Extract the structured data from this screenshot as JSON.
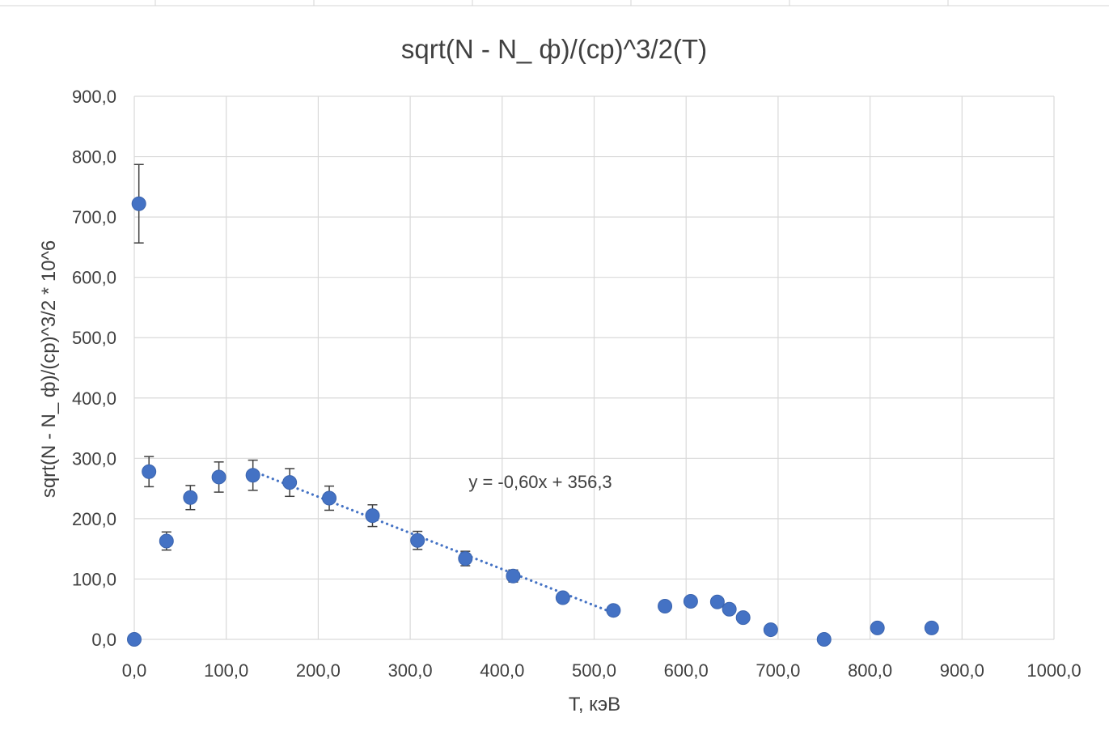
{
  "chart_data": {
    "type": "scatter",
    "title": "sqrt(N - N_ ф)/(cp)^3/2(T)",
    "xlabel": "T, кэВ",
    "ylabel": "sqrt(N - N_ ф)/(cp)^3/2 * 10^6",
    "xlim": [
      0,
      1000
    ],
    "ylim": [
      0,
      900
    ],
    "x_ticks": [
      0,
      100,
      200,
      300,
      400,
      500,
      600,
      700,
      800,
      900,
      1000
    ],
    "y_ticks": [
      0,
      100,
      200,
      300,
      400,
      500,
      600,
      700,
      800,
      900
    ],
    "x_tick_labels": [
      "0,0",
      "100,0",
      "200,0",
      "300,0",
      "400,0",
      "500,0",
      "600,0",
      "700,0",
      "800,0",
      "900,0",
      "1000,0"
    ],
    "y_tick_labels": [
      "0,0",
      "100,0",
      "200,0",
      "300,0",
      "400,0",
      "500,0",
      "600,0",
      "700,0",
      "800,0",
      "900,0"
    ],
    "grid": true,
    "legend": "none",
    "marker_color": "#4472C4",
    "errorbar_color": "#404040",
    "series": [
      {
        "points": [
          {
            "x": 0,
            "y": 0
          },
          {
            "x": 5,
            "y": 722,
            "err": 65
          },
          {
            "x": 16,
            "y": 278,
            "err": 25
          },
          {
            "x": 35,
            "y": 163,
            "err": 15
          },
          {
            "x": 61,
            "y": 235,
            "err": 20
          },
          {
            "x": 92,
            "y": 269,
            "err": 25
          },
          {
            "x": 129,
            "y": 272,
            "err": 25
          },
          {
            "x": 169,
            "y": 260,
            "err": 23
          },
          {
            "x": 212,
            "y": 234,
            "err": 20
          },
          {
            "x": 259,
            "y": 205,
            "err": 18
          },
          {
            "x": 308,
            "y": 164,
            "err": 15
          },
          {
            "x": 360,
            "y": 134,
            "err": 12
          },
          {
            "x": 412,
            "y": 105,
            "err": 10
          },
          {
            "x": 466,
            "y": 69
          },
          {
            "x": 521,
            "y": 48
          },
          {
            "x": 577,
            "y": 55
          },
          {
            "x": 605,
            "y": 63
          },
          {
            "x": 634,
            "y": 62
          },
          {
            "x": 647,
            "y": 50
          },
          {
            "x": 662,
            "y": 36
          },
          {
            "x": 692,
            "y": 16
          },
          {
            "x": 750,
            "y": 0
          },
          {
            "x": 808,
            "y": 19
          },
          {
            "x": 867,
            "y": 19
          }
        ]
      }
    ],
    "trendline": {
      "type": "linear",
      "slope": -0.6,
      "intercept": 356.3,
      "x_range": [
        129,
        521
      ],
      "equation": "y = -0,60x + 356,3",
      "color": "#4472C4",
      "style": "dotted"
    }
  }
}
